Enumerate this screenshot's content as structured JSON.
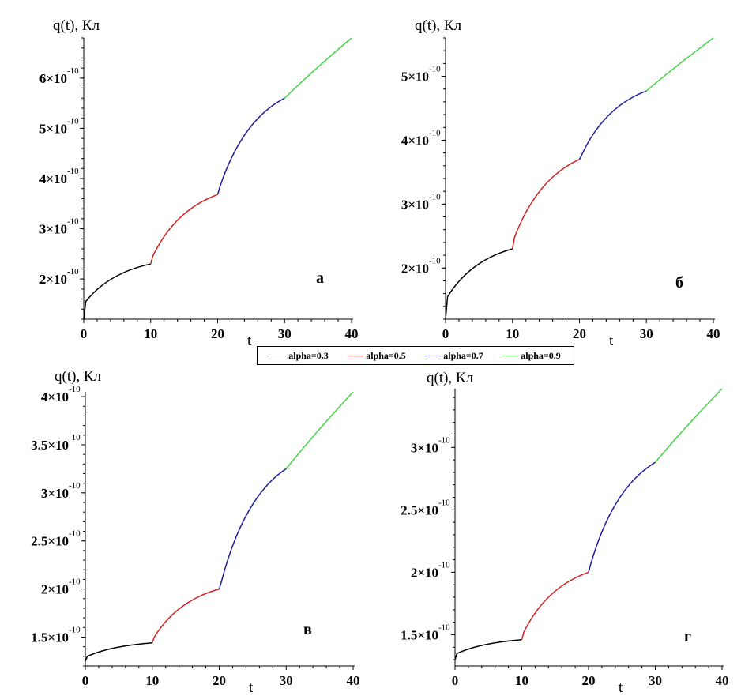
{
  "chart_data": [
    {
      "type": "line",
      "panel_label": "а",
      "ylabel": "q(t), Кл",
      "xlabel": "t",
      "xlim": [
        0,
        40
      ],
      "ylim": [
        1.2e-10,
        6.8e-10
      ],
      "x_ticks": [
        0,
        10,
        20,
        30,
        40
      ],
      "y_ticks": [
        {
          "mant": "2",
          "value": 2e-10
        },
        {
          "mant": "3",
          "value": 3e-10
        },
        {
          "mant": "4",
          "value": 4e-10
        },
        {
          "mant": "5",
          "value": 5e-10
        },
        {
          "mant": "6",
          "value": 6e-10
        }
      ],
      "y_start": 1.2e-10,
      "knots": [
        {
          "t": 0.3,
          "q": 1.55e-10
        },
        {
          "t": 10,
          "q": 2.3e-10
        },
        {
          "t": 10.3,
          "q": 2.45e-10
        },
        {
          "t": 20,
          "q": 3.68e-10
        },
        {
          "t": 20.3,
          "q": 3.82e-10
        },
        {
          "t": 30,
          "q": 5.6e-10
        },
        {
          "t": 40,
          "q": 6.8e-10
        }
      ]
    },
    {
      "type": "line",
      "panel_label": "б",
      "ylabel": "q(t), Кл",
      "xlabel": "t",
      "xlim": [
        0,
        40
      ],
      "ylim": [
        1.2e-10,
        5.6e-10
      ],
      "x_ticks": [
        0,
        10,
        20,
        30,
        40
      ],
      "y_ticks": [
        {
          "mant": "2",
          "value": 2e-10
        },
        {
          "mant": "3",
          "value": 3e-10
        },
        {
          "mant": "4",
          "value": 4e-10
        },
        {
          "mant": "5",
          "value": 5e-10
        }
      ],
      "y_start": 1.2e-10,
      "knots": [
        {
          "t": 0.3,
          "q": 1.55e-10
        },
        {
          "t": 10,
          "q": 2.3e-10
        },
        {
          "t": 10.3,
          "q": 2.48e-10
        },
        {
          "t": 20,
          "q": 3.7e-10
        },
        {
          "t": 20.3,
          "q": 3.76e-10
        },
        {
          "t": 30,
          "q": 4.77e-10
        },
        {
          "t": 40,
          "q": 5.6e-10
        }
      ]
    },
    {
      "type": "line",
      "panel_label": "в",
      "ylabel": "q(t), Кл",
      "xlabel": "t",
      "xlim": [
        0,
        40
      ],
      "ylim": [
        1.2e-10,
        4.05e-10
      ],
      "x_ticks": [
        0,
        10,
        20,
        30,
        40
      ],
      "y_ticks": [
        {
          "mant": "1.5",
          "value": 1.5e-10
        },
        {
          "mant": "2",
          "value": 2e-10
        },
        {
          "mant": "2.5",
          "value": 2.5e-10
        },
        {
          "mant": "3",
          "value": 3e-10
        },
        {
          "mant": "3.5",
          "value": 3.5e-10
        },
        {
          "mant": "4",
          "value": 4e-10
        }
      ],
      "y_start": 1.25e-10,
      "knots": [
        {
          "t": 0.3,
          "q": 1.3e-10
        },
        {
          "t": 10,
          "q": 1.44e-10
        },
        {
          "t": 10.3,
          "q": 1.5e-10
        },
        {
          "t": 20,
          "q": 2e-10
        },
        {
          "t": 20.3,
          "q": 2.07e-10
        },
        {
          "t": 30,
          "q": 3.25e-10
        },
        {
          "t": 40,
          "q": 4.05e-10
        }
      ]
    },
    {
      "type": "line",
      "panel_label": "г",
      "ylabel": "q(t), Кл",
      "xlabel": "t",
      "xlim": [
        0,
        40
      ],
      "ylim": [
        1.25e-10,
        3.47e-10
      ],
      "x_ticks": [
        0,
        10,
        20,
        30,
        40
      ],
      "y_ticks": [
        {
          "mant": "1.5",
          "value": 1.5e-10
        },
        {
          "mant": "2",
          "value": 2e-10
        },
        {
          "mant": "2.5",
          "value": 2.5e-10
        },
        {
          "mant": "3",
          "value": 3e-10
        }
      ],
      "y_start": 1.3e-10,
      "knots": [
        {
          "t": 0.3,
          "q": 1.35e-10
        },
        {
          "t": 10,
          "q": 1.46e-10
        },
        {
          "t": 10.3,
          "q": 1.52e-10
        },
        {
          "t": 20,
          "q": 2e-10
        },
        {
          "t": 20.3,
          "q": 2.06e-10
        },
        {
          "t": 30,
          "q": 2.88e-10
        },
        {
          "t": 40,
          "q": 3.47e-10
        }
      ]
    }
  ],
  "legend": {
    "items": [
      {
        "label": "alpha=0.3",
        "color": "#000000"
      },
      {
        "label": "alpha=0.5",
        "color": "#d42020"
      },
      {
        "label": "alpha=0.7",
        "color": "#1c1c9c"
      },
      {
        "label": "alpha=0.9",
        "color": "#44d444"
      }
    ]
  },
  "tick_exponent": "-10",
  "times_sign": "×10"
}
